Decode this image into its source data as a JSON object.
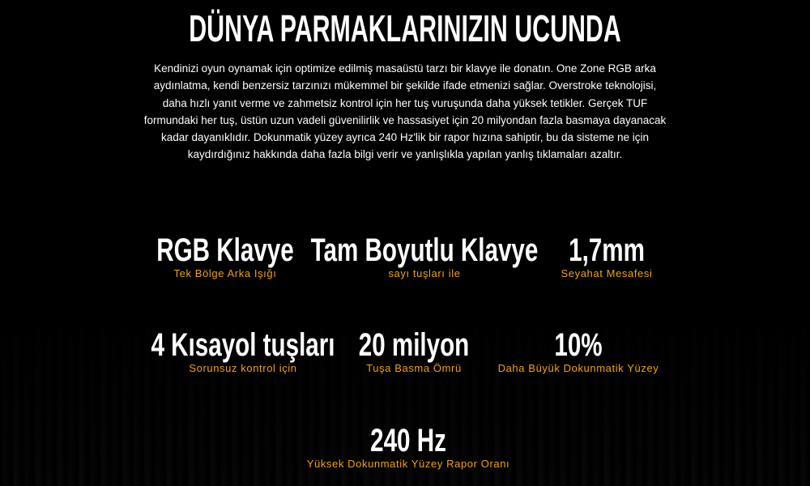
{
  "title": "DÜNYA PARMAKLARINIZIN UCUNDA",
  "description_lines": [
    "Kendinizi oyun oynamak için optimize edilmiş masaüstü tarzı bir klavye ile donatın. One Zone RGB arka",
    "aydınlatma, kendi benzersiz tarzınızı mükemmel bir şekilde ifade etmenizi sağlar. Overstroke teknolojisi,",
    "daha hızlı yanıt verme ve zahmetsiz kontrol için her tuş vuruşunda daha yüksek tetikler. Gerçek TUF",
    "formundaki her tuş, üstün uzun vadeli güvenilirlik ve hassasiyet için 20 milyondan fazla basmaya dayanacak",
    "kadar dayanıklıdır. Dokunmatik yüzey ayrıca 240 Hz'lik bir rapor hızına sahiptir, bu da sisteme ne için",
    "kaydırdığınız hakkında daha fazla bilgi verir ve yanlışlıkla yapılan yanlış tıklamaları azaltır."
  ],
  "stats": [
    {
      "value": "RGB Klavye",
      "label": "Tek Bölge Arka Işığı"
    },
    {
      "value": "Tam Boyutlu Klavye",
      "label": "sayı tuşları ile"
    },
    {
      "value": "1,7mm",
      "label": "Seyahat Mesafesi"
    },
    {
      "value": "4 Kısayol tuşları",
      "label": "Sorunsuz kontrol için"
    },
    {
      "value": "20 milyon",
      "label": "Tuşa Basma Ömrü"
    },
    {
      "value": "10%",
      "label": "Daha Büyük Dokunmatik Yüzey"
    },
    {
      "value": "240 Hz",
      "label": "Yüksek Dokunmatik Yüzey Rapor Oranı"
    }
  ],
  "colors": {
    "accent": "#f0a30a",
    "background": "#000000",
    "text": "#ffffff"
  }
}
